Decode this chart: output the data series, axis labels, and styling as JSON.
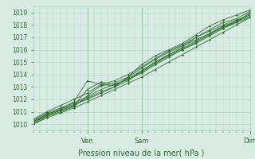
{
  "title": "",
  "xlabel": "Pression niveau de la mer( hPa )",
  "ylabel": "",
  "bg_color": "#d8ece4",
  "grid_color": "#aacfbe",
  "line_color": "#2d6b2d",
  "tick_color": "#2d6b2d",
  "label_color": "#2d6b2d",
  "ylim": [
    1009.5,
    1019.5
  ],
  "yticks": [
    1010,
    1011,
    1012,
    1013,
    1014,
    1015,
    1016,
    1017,
    1018,
    1019
  ],
  "xlim": [
    0,
    96
  ],
  "xtick_positions": [
    24,
    48,
    96
  ],
  "xtick_labels": [
    "Ven",
    "Sam",
    "Dim"
  ],
  "series": [
    [
      0,
      1010.2,
      6,
      1010.8,
      12,
      1011.2,
      18,
      1011.6,
      24,
      1012.0,
      30,
      1012.5,
      36,
      1013.0,
      42,
      1013.8,
      48,
      1014.5,
      54,
      1015.2,
      60,
      1015.8,
      66,
      1016.3,
      72,
      1016.8,
      78,
      1017.3,
      84,
      1017.8,
      90,
      1018.2,
      96,
      1019.0
    ],
    [
      0,
      1010.1,
      6,
      1010.7,
      12,
      1011.1,
      18,
      1011.5,
      24,
      1012.1,
      30,
      1012.6,
      36,
      1013.0,
      42,
      1013.5,
      48,
      1014.3,
      54,
      1015.0,
      60,
      1015.6,
      66,
      1016.2,
      72,
      1017.0,
      78,
      1017.6,
      84,
      1018.2,
      90,
      1018.5,
      96,
      1019.1
    ],
    [
      0,
      1010.0,
      6,
      1010.6,
      12,
      1011.0,
      18,
      1011.4,
      24,
      1012.3,
      30,
      1013.1,
      36,
      1013.3,
      42,
      1013.8,
      48,
      1014.8,
      54,
      1015.5,
      60,
      1016.0,
      66,
      1016.5,
      72,
      1017.2,
      78,
      1017.9,
      84,
      1018.4,
      90,
      1018.8,
      96,
      1019.2
    ],
    [
      0,
      1010.3,
      6,
      1010.9,
      12,
      1011.3,
      18,
      1011.7,
      24,
      1012.2,
      30,
      1012.8,
      36,
      1013.2,
      42,
      1013.6,
      48,
      1014.1,
      54,
      1014.8,
      60,
      1015.4,
      66,
      1016.0,
      72,
      1016.6,
      78,
      1017.2,
      84,
      1017.8,
      90,
      1018.3,
      96,
      1018.9
    ],
    [
      0,
      1010.4,
      6,
      1011.0,
      12,
      1011.5,
      18,
      1012.0,
      24,
      1012.5,
      30,
      1013.2,
      36,
      1013.5,
      42,
      1014.0,
      48,
      1014.6,
      54,
      1015.3,
      60,
      1015.9,
      66,
      1016.4,
      72,
      1017.0,
      78,
      1017.5,
      84,
      1018.0,
      90,
      1018.4,
      96,
      1018.8
    ],
    [
      0,
      1010.2,
      6,
      1010.8,
      12,
      1011.2,
      18,
      1011.8,
      24,
      1013.5,
      30,
      1013.2,
      36,
      1013.1,
      42,
      1013.7,
      48,
      1014.3,
      54,
      1015.0,
      60,
      1015.6,
      66,
      1016.1,
      72,
      1016.7,
      78,
      1017.3,
      84,
      1017.9,
      90,
      1018.3,
      96,
      1018.7
    ],
    [
      0,
      1010.1,
      6,
      1010.7,
      12,
      1011.1,
      18,
      1011.5,
      24,
      1012.8,
      30,
      1013.4,
      36,
      1013.2,
      42,
      1013.6,
      48,
      1014.2,
      54,
      1014.9,
      60,
      1015.5,
      66,
      1016.0,
      72,
      1016.5,
      78,
      1017.1,
      84,
      1017.7,
      90,
      1018.2,
      96,
      1018.6
    ],
    [
      0,
      1010.0,
      6,
      1010.5,
      12,
      1010.9,
      18,
      1011.3,
      24,
      1011.8,
      30,
      1012.3,
      36,
      1012.8,
      42,
      1013.3,
      48,
      1013.8,
      54,
      1014.4,
      60,
      1015.0,
      66,
      1015.6,
      72,
      1016.2,
      78,
      1016.8,
      84,
      1017.4,
      90,
      1018.0,
      96,
      1018.6
    ]
  ]
}
